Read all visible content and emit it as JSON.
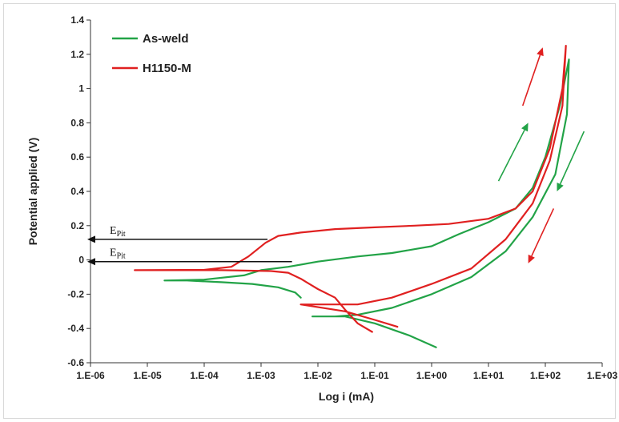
{
  "chart_data": {
    "type": "line",
    "xlabel": "Log i (mA)",
    "ylabel": "Potential applied (V)",
    "x_scale": "log",
    "xlim": [
      1e-06,
      1000
    ],
    "ylim": [
      -0.6,
      1.4
    ],
    "x_ticks": [
      "1.E-06",
      "1.E-05",
      "1.E-04",
      "1.E-03",
      "1.E-02",
      "1.E-01",
      "1.E+00",
      "1.E+01",
      "1.E+02",
      "1.E+03"
    ],
    "y_ticks": [
      "-0.6",
      "-0.4",
      "-0.2",
      "0",
      "0.2",
      "0.4",
      "0.6",
      "0.8",
      "1",
      "1.2",
      "1.4"
    ],
    "legend_position": "top-left",
    "grid": false,
    "series": [
      {
        "name": "As-weld",
        "color": "#22a347",
        "points": [
          [
            0.005,
            -0.22
          ],
          [
            0.004,
            -0.19
          ],
          [
            0.002,
            -0.16
          ],
          [
            0.0007,
            -0.14
          ],
          [
            0.0002,
            -0.13
          ],
          [
            5e-05,
            -0.12
          ],
          [
            2e-05,
            -0.12
          ],
          [
            0.0001,
            -0.115
          ],
          [
            0.0005,
            -0.09
          ],
          [
            0.001,
            -0.06
          ],
          [
            0.003,
            -0.04
          ],
          [
            0.01,
            -0.01
          ],
          [
            0.05,
            0.02
          ],
          [
            0.2,
            0.04
          ],
          [
            1,
            0.08
          ],
          [
            3,
            0.15
          ],
          [
            10,
            0.22
          ],
          [
            30,
            0.3
          ],
          [
            60,
            0.42
          ],
          [
            100,
            0.6
          ],
          [
            180,
            0.9
          ],
          [
            260,
            1.17
          ],
          [
            240,
            0.85
          ],
          [
            150,
            0.5
          ],
          [
            60,
            0.25
          ],
          [
            20,
            0.05
          ],
          [
            5,
            -0.1
          ],
          [
            1,
            -0.2
          ],
          [
            0.2,
            -0.28
          ],
          [
            0.05,
            -0.32
          ],
          [
            0.02,
            -0.33
          ],
          [
            0.008,
            -0.33
          ],
          [
            0.03,
            -0.33
          ],
          [
            0.1,
            -0.37
          ],
          [
            0.4,
            -0.44
          ],
          [
            1.2,
            -0.51
          ]
        ]
      },
      {
        "name": "H1150-M",
        "color": "#e02020",
        "points": [
          [
            0.09,
            -0.42
          ],
          [
            0.05,
            -0.37
          ],
          [
            0.03,
            -0.29
          ],
          [
            0.02,
            -0.22
          ],
          [
            0.01,
            -0.17
          ],
          [
            0.005,
            -0.11
          ],
          [
            0.003,
            -0.075
          ],
          [
            0.0015,
            -0.065
          ],
          [
            0.0002,
            -0.06
          ],
          [
            6e-06,
            -0.06
          ],
          [
            0.0001,
            -0.058
          ],
          [
            0.0003,
            -0.04
          ],
          [
            0.0006,
            0.02
          ],
          [
            0.0012,
            0.1
          ],
          [
            0.002,
            0.14
          ],
          [
            0.005,
            0.16
          ],
          [
            0.02,
            0.18
          ],
          [
            0.1,
            0.19
          ],
          [
            0.5,
            0.2
          ],
          [
            2,
            0.21
          ],
          [
            10,
            0.24
          ],
          [
            30,
            0.3
          ],
          [
            60,
            0.4
          ],
          [
            120,
            0.65
          ],
          [
            200,
            1.0
          ],
          [
            230,
            1.25
          ],
          [
            200,
            0.9
          ],
          [
            120,
            0.58
          ],
          [
            60,
            0.33
          ],
          [
            20,
            0.12
          ],
          [
            5,
            -0.05
          ],
          [
            1,
            -0.14
          ],
          [
            0.2,
            -0.22
          ],
          [
            0.05,
            -0.26
          ],
          [
            0.02,
            -0.26
          ],
          [
            0.005,
            -0.26
          ],
          [
            0.03,
            -0.3
          ],
          [
            0.1,
            -0.35
          ],
          [
            0.25,
            -0.39
          ]
        ]
      }
    ],
    "annotations": [
      {
        "label": "E",
        "sub": "Pit",
        "y": 0.12,
        "x_from": 0.0013,
        "x_to": 1e-06
      },
      {
        "label": "E",
        "sub": "Pit",
        "y": -0.01,
        "x_from": 0.0035,
        "x_to": 1e-06
      }
    ],
    "direction_arrows": [
      {
        "series": "H1150-M",
        "color": "#e02020",
        "from": [
          40,
          0.9
        ],
        "to": [
          90,
          1.24
        ]
      },
      {
        "series": "As-weld",
        "color": "#22a347",
        "from": [
          15,
          0.46
        ],
        "to": [
          50,
          0.8
        ]
      },
      {
        "series": "As-weld",
        "color": "#22a347",
        "from": [
          480,
          0.75
        ],
        "to": [
          160,
          0.4
        ]
      },
      {
        "series": "H1150-M",
        "color": "#e02020",
        "from": [
          140,
          0.3
        ],
        "to": [
          50,
          -0.02
        ]
      }
    ]
  }
}
